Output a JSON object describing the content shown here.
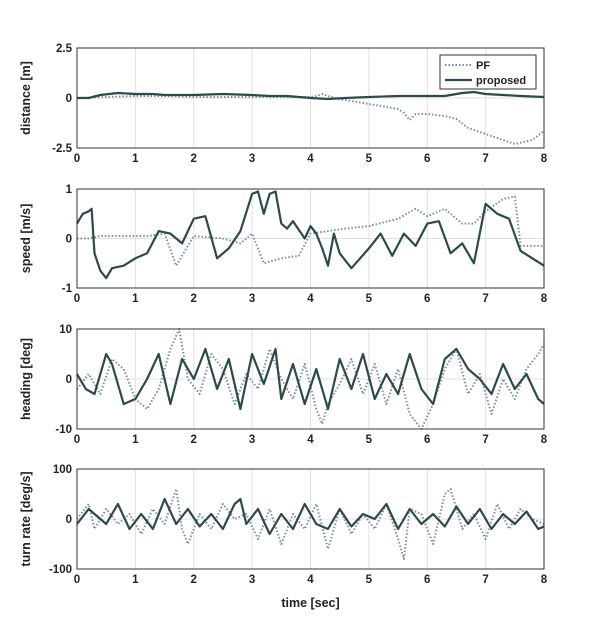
{
  "colors": {
    "pf": "#7b8da6",
    "proposed": "#2c4a4a",
    "grid": "#e0e0e0",
    "axis": "#333333"
  },
  "chart_data": [
    {
      "type": "line",
      "ylabel": "distance [m]",
      "xlim": [
        0,
        8
      ],
      "ylim": [
        -2.5,
        2.5
      ],
      "xticks": [
        "0",
        "1",
        "2",
        "3",
        "4",
        "5",
        "6",
        "7",
        "8"
      ],
      "yticks": [
        {
          "v": 2.5,
          "label": "2.5"
        },
        {
          "v": 0,
          "label": "0"
        },
        {
          "v": -2.5,
          "label": "-2.5"
        }
      ],
      "grid": true,
      "legend": {
        "placement": "top-right",
        "entries": [
          "PF",
          "proposed"
        ]
      },
      "series": [
        {
          "name": "PF",
          "style": "dotted",
          "x": [
            0,
            0.5,
            1,
            1.5,
            2,
            2.5,
            3,
            3.5,
            4,
            4.1,
            4.2,
            4.3,
            4.5,
            5,
            5.5,
            5.6,
            5.7,
            5.8,
            6,
            6.3,
            6.5,
            6.7,
            7,
            7.2,
            7.5,
            7.8,
            8
          ],
          "y": [
            0,
            0.05,
            0.1,
            0.1,
            0.05,
            0.05,
            0.05,
            0.05,
            0.05,
            0.1,
            0.2,
            0.1,
            -0.05,
            -0.3,
            -0.55,
            -0.75,
            -1.1,
            -0.8,
            -0.8,
            -0.9,
            -1.05,
            -1.5,
            -1.8,
            -2.0,
            -2.3,
            -2.1,
            -1.65
          ]
        },
        {
          "name": "proposed",
          "style": "solid",
          "x": [
            0,
            0.2,
            0.4,
            0.7,
            1,
            1.3,
            1.5,
            2,
            2.5,
            3,
            3.3,
            3.6,
            4,
            4.3,
            4.6,
            5,
            5.5,
            6,
            6.3,
            6.6,
            6.8,
            7,
            7.3,
            7.6,
            8
          ],
          "y": [
            0,
            0,
            0.15,
            0.25,
            0.2,
            0.2,
            0.15,
            0.15,
            0.2,
            0.15,
            0.1,
            0.1,
            0,
            -0.05,
            0,
            0.05,
            0.1,
            0.1,
            0.1,
            0.25,
            0.3,
            0.2,
            0.15,
            0.1,
            0.05
          ]
        }
      ]
    },
    {
      "type": "line",
      "ylabel": "speed [m/s]",
      "xlim": [
        0,
        8
      ],
      "ylim": [
        -1,
        1
      ],
      "xticks": [
        "0",
        "1",
        "2",
        "3",
        "4",
        "5",
        "6",
        "7",
        "8"
      ],
      "yticks": [
        {
          "v": 1,
          "label": "1"
        },
        {
          "v": 0,
          "label": "0"
        },
        {
          "v": -1,
          "label": "-1"
        }
      ],
      "grid": true,
      "series": [
        {
          "name": "PF",
          "style": "dotted",
          "x": [
            0,
            0.2,
            0.4,
            0.6,
            0.9,
            1.2,
            1.5,
            1.7,
            2,
            2.5,
            2.8,
            3,
            3.2,
            3.5,
            3.8,
            4,
            4.3,
            4.6,
            5,
            5.5,
            5.8,
            6,
            6.3,
            6.6,
            6.8,
            7,
            7.3,
            7.5,
            7.6,
            8
          ],
          "y": [
            0,
            0,
            0.05,
            0.05,
            0.05,
            0.05,
            0.1,
            -0.55,
            0.05,
            0.0,
            -0.1,
            0.1,
            -0.5,
            -0.4,
            -0.35,
            0.1,
            0.15,
            0.2,
            0.25,
            0.4,
            0.6,
            0.45,
            0.6,
            0.3,
            0.3,
            0.55,
            0.8,
            0.85,
            -0.15,
            -0.15
          ]
        },
        {
          "name": "proposed",
          "style": "solid",
          "x": [
            0,
            0.1,
            0.2,
            0.25,
            0.3,
            0.4,
            0.5,
            0.6,
            0.8,
            1,
            1.2,
            1.4,
            1.6,
            1.8,
            2,
            2.2,
            2.4,
            2.6,
            2.8,
            3,
            3.1,
            3.2,
            3.3,
            3.4,
            3.5,
            3.6,
            3.7,
            3.9,
            4,
            4.1,
            4.2,
            4.3,
            4.4,
            4.5,
            4.7,
            5,
            5.2,
            5.4,
            5.6,
            5.8,
            6,
            6.2,
            6.4,
            6.6,
            6.8,
            7,
            7.2,
            7.4,
            7.6,
            7.8,
            8
          ],
          "y": [
            0.3,
            0.5,
            0.55,
            0.6,
            -0.3,
            -0.65,
            -0.8,
            -0.6,
            -0.55,
            -0.4,
            -0.3,
            0.15,
            0.1,
            -0.1,
            0.4,
            0.45,
            -0.4,
            -0.2,
            0.15,
            0.9,
            0.95,
            0.5,
            0.9,
            0.95,
            0.3,
            0.2,
            0.35,
            0.0,
            0.25,
            0.1,
            -0.2,
            -0.55,
            0.1,
            -0.3,
            -0.6,
            -0.2,
            0.1,
            -0.35,
            0.1,
            -0.15,
            0.3,
            0.35,
            -0.3,
            -0.1,
            -0.5,
            0.7,
            0.5,
            0.4,
            -0.25,
            -0.4,
            -0.55
          ]
        }
      ]
    },
    {
      "type": "line",
      "ylabel": "heading [deg]",
      "xlim": [
        0,
        8
      ],
      "ylim": [
        -10,
        10
      ],
      "xticks": [
        "0",
        "1",
        "2",
        "3",
        "4",
        "5",
        "6",
        "7",
        "8"
      ],
      "yticks": [
        {
          "v": 10,
          "label": "10"
        },
        {
          "v": 0,
          "label": "0"
        },
        {
          "v": -10,
          "label": "-10"
        }
      ],
      "grid": true,
      "series": [
        {
          "name": "PF",
          "style": "dotted",
          "x": [
            0,
            0.2,
            0.4,
            0.6,
            0.8,
            1,
            1.2,
            1.4,
            1.6,
            1.75,
            1.9,
            2.1,
            2.3,
            2.5,
            2.7,
            2.9,
            3.1,
            3.3,
            3.5,
            3.7,
            3.9,
            4.1,
            4.2,
            4.3,
            4.5,
            4.7,
            4.9,
            5.1,
            5.3,
            5.5,
            5.7,
            5.9,
            6.1,
            6.3,
            6.5,
            6.7,
            6.9,
            7.1,
            7.3,
            7.5,
            7.7,
            7.9,
            8
          ],
          "y": [
            -2,
            1,
            -3,
            4,
            2,
            -4,
            -6,
            -2,
            6,
            10,
            0,
            -3,
            5,
            2,
            -5,
            1,
            -2,
            6,
            0,
            -4,
            3,
            -6,
            -9,
            -5,
            -1,
            4,
            -3,
            3,
            -5,
            2,
            -7,
            -10,
            -5,
            2,
            6,
            -3,
            1,
            -7,
            0,
            -4,
            2,
            5,
            7
          ]
        },
        {
          "name": "proposed",
          "style": "solid",
          "x": [
            0,
            0.15,
            0.3,
            0.5,
            0.6,
            0.8,
            1,
            1.2,
            1.4,
            1.6,
            1.8,
            2,
            2.2,
            2.4,
            2.6,
            2.8,
            3,
            3.2,
            3.4,
            3.5,
            3.7,
            3.9,
            4.1,
            4.3,
            4.5,
            4.7,
            4.9,
            5.1,
            5.3,
            5.5,
            5.7,
            5.9,
            6.1,
            6.3,
            6.5,
            6.7,
            6.9,
            7.1,
            7.3,
            7.5,
            7.7,
            7.9,
            8
          ],
          "y": [
            1,
            -2,
            -3,
            5,
            3,
            -5,
            -4,
            0,
            5,
            -5,
            4,
            0,
            6,
            -2,
            4,
            -6,
            5,
            -1,
            6,
            -4,
            3,
            -5,
            2,
            -6,
            4,
            -2,
            5,
            -4,
            1,
            -3,
            5,
            -2,
            -5,
            4,
            6,
            2,
            0,
            -3,
            3,
            -2,
            1,
            -4,
            -5
          ]
        }
      ]
    },
    {
      "type": "line",
      "ylabel": "turn rate [deg/s]",
      "xlabel": "time [sec]",
      "xlim": [
        0,
        8
      ],
      "ylim": [
        -100,
        100
      ],
      "xticks": [
        "0",
        "1",
        "2",
        "3",
        "4",
        "5",
        "6",
        "7",
        "8"
      ],
      "yticks": [
        {
          "v": 100,
          "label": "100"
        },
        {
          "v": 0,
          "label": "0"
        },
        {
          "v": -100,
          "label": "-100"
        }
      ],
      "grid": true,
      "series": [
        {
          "name": "PF",
          "style": "dotted",
          "x": [
            0,
            0.2,
            0.3,
            0.5,
            0.7,
            0.9,
            1.1,
            1.3,
            1.5,
            1.7,
            1.8,
            1.9,
            2.1,
            2.3,
            2.5,
            2.7,
            2.9,
            3.1,
            3.3,
            3.5,
            3.7,
            3.9,
            4.1,
            4.3,
            4.5,
            4.7,
            4.9,
            5.1,
            5.3,
            5.5,
            5.6,
            5.7,
            5.9,
            6.1,
            6.3,
            6.4,
            6.6,
            6.8,
            7,
            7.2,
            7.4,
            7.6,
            7.8,
            8
          ],
          "y": [
            0,
            30,
            -20,
            20,
            -10,
            10,
            -30,
            20,
            -10,
            60,
            -20,
            -50,
            10,
            -20,
            30,
            0,
            10,
            -40,
            20,
            -50,
            10,
            -20,
            30,
            -60,
            20,
            -30,
            10,
            -20,
            30,
            -40,
            -80,
            20,
            10,
            -50,
            50,
            60,
            -20,
            10,
            -40,
            30,
            -20,
            20,
            0,
            -10
          ]
        },
        {
          "name": "proposed",
          "style": "solid",
          "x": [
            0,
            0.2,
            0.3,
            0.5,
            0.7,
            0.9,
            1.1,
            1.3,
            1.5,
            1.7,
            1.9,
            2.1,
            2.3,
            2.5,
            2.7,
            2.8,
            2.9,
            3.1,
            3.3,
            3.5,
            3.7,
            3.9,
            4.1,
            4.3,
            4.5,
            4.7,
            4.9,
            5.1,
            5.3,
            5.5,
            5.7,
            5.9,
            6.1,
            6.3,
            6.5,
            6.7,
            6.9,
            7.1,
            7.3,
            7.5,
            7.7,
            7.9,
            8
          ],
          "y": [
            -10,
            20,
            10,
            -10,
            30,
            -20,
            10,
            -20,
            40,
            -10,
            20,
            -15,
            10,
            -20,
            30,
            40,
            -10,
            20,
            -30,
            10,
            -20,
            30,
            -10,
            -20,
            20,
            -15,
            10,
            0,
            30,
            -20,
            20,
            -10,
            10,
            -15,
            25,
            -10,
            20,
            -20,
            10,
            -10,
            15,
            -20,
            -15
          ]
        }
      ]
    }
  ]
}
